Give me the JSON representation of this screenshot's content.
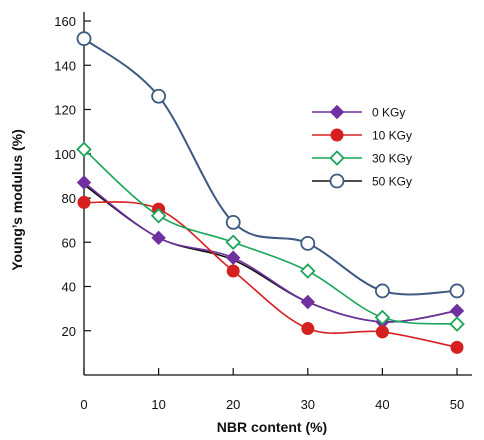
{
  "chart_data": {
    "type": "line",
    "title": "",
    "xlabel": "NBR content (%)",
    "ylabel": "Young’s modulus (%)",
    "x": [
      0,
      10,
      20,
      30,
      40,
      50
    ],
    "x_ticks": [
      "0",
      "10",
      "20",
      "30",
      "40",
      "50"
    ],
    "y_ticks": [
      "20",
      "40",
      "60",
      "80",
      "100",
      "120",
      "140",
      "160"
    ],
    "xlim": [
      0,
      50
    ],
    "ylim": [
      0,
      160
    ],
    "grid": false,
    "legend_position": "right",
    "series": [
      {
        "name": "0 KGy",
        "values": [
          87,
          62,
          53,
          33,
          24,
          29
        ],
        "color": "#7030a0",
        "marker": "diamond-filled"
      },
      {
        "name": "10 KGy",
        "values": [
          78,
          75,
          47,
          21,
          19.5,
          12.5
        ],
        "color": "#d62020",
        "marker": "circle-filled"
      },
      {
        "name": "30 KGy",
        "values": [
          102,
          72,
          60,
          47,
          26,
          23
        ],
        "color": "#1aa55a",
        "marker": "diamond-open"
      },
      {
        "name": "50 KGy",
        "values": [
          152,
          126,
          69,
          59.5,
          38,
          38
        ],
        "color": "#3d5a80",
        "marker": "circle-open"
      }
    ],
    "fit_line_color": "#111111",
    "fit_line_values": [
      86,
      62,
      52,
      33,
      24,
      29
    ]
  }
}
